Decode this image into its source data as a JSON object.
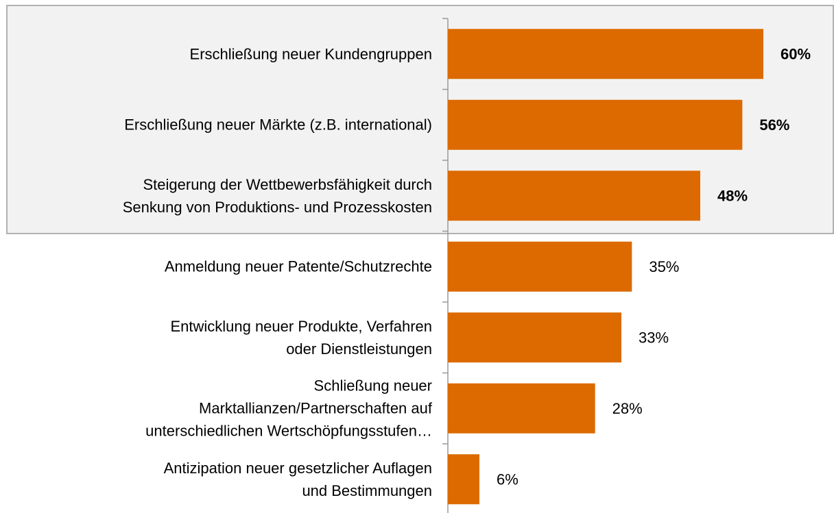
{
  "chart_data": {
    "type": "barh",
    "categories": [
      "Erschließung neuer Kundengruppen",
      "Erschließung neuer Märkte (z.B. international)",
      "Steigerung der Wettbewerbsfähigkeit durch\nSenkung von Produktions- und Prozesskosten",
      "Anmeldung neuer Patente/Schutzrechte",
      "Entwicklung neuer Produkte, Verfahren\noder Dienstleistungen",
      "Schließung neuer\nMarktallianzen/Partnerschaften auf\nunterschiedlichen Wertschöpfungsstufen…",
      "Antizipation neuer gesetzlicher Auflagen\nund Bestimmungen"
    ],
    "values": [
      60,
      56,
      48,
      35,
      33,
      28,
      6
    ],
    "value_labels": [
      "60%",
      "56%",
      "48%",
      "35%",
      "33%",
      "28%",
      "6%"
    ],
    "color": "#dc6a00",
    "xlim": [
      0,
      60
    ]
  }
}
